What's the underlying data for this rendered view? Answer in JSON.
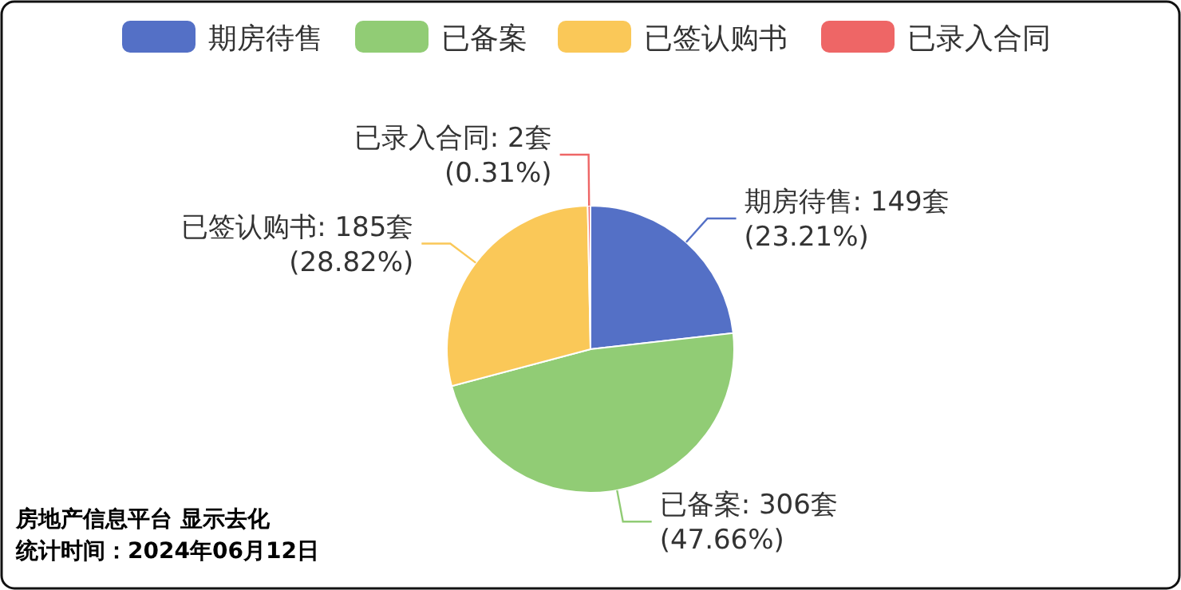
{
  "chart_data": {
    "type": "pie",
    "categories": [
      "期房待售",
      "已备案",
      "已签认购书",
      "已录入合同"
    ],
    "values": [
      149,
      306,
      185,
      2
    ],
    "colors": [
      "#5470c6",
      "#91cc75",
      "#fac858",
      "#ee6666"
    ],
    "value_labels": [
      "期房待售: 149套\n(23.21%)",
      "已备案: 306套\n(47.66%)",
      "已签认购书: 185套\n(28.82%)",
      "已录入合同: 2套\n(0.31%)"
    ],
    "legend": "top",
    "annotations": [
      "房地产信息平台 显示去化",
      "统计时间：2024年06月12日"
    ]
  }
}
